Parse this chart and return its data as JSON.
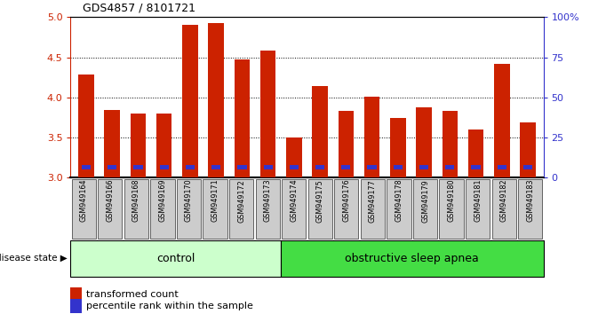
{
  "title": "GDS4857 / 8101721",
  "samples": [
    "GSM949164",
    "GSM949166",
    "GSM949168",
    "GSM949169",
    "GSM949170",
    "GSM949171",
    "GSM949172",
    "GSM949173",
    "GSM949174",
    "GSM949175",
    "GSM949176",
    "GSM949177",
    "GSM949178",
    "GSM949179",
    "GSM949180",
    "GSM949181",
    "GSM949182",
    "GSM949183"
  ],
  "transformed_count": [
    4.28,
    3.84,
    3.8,
    3.8,
    4.9,
    4.93,
    4.47,
    4.58,
    3.5,
    4.14,
    3.83,
    4.01,
    3.74,
    3.88,
    3.83,
    3.6,
    4.42,
    3.69
  ],
  "percentile_rank": [
    14,
    12,
    13,
    12,
    14,
    15,
    14,
    14,
    5,
    13,
    13,
    13,
    12,
    13,
    12,
    12,
    15,
    13
  ],
  "baseline": 3.0,
  "ylim_left": [
    3.0,
    5.0
  ],
  "ylim_right": [
    0,
    100
  ],
  "yticks_left": [
    3.0,
    3.5,
    4.0,
    4.5,
    5.0
  ],
  "yticks_right": [
    0,
    25,
    50,
    75,
    100
  ],
  "ytick_labels_right": [
    "0",
    "25",
    "50",
    "75",
    "100%"
  ],
  "control_count": 8,
  "control_label": "control",
  "disease_label": "obstructive sleep apnea",
  "legend_red": "transformed count",
  "legend_blue": "percentile rank within the sample",
  "disease_state_label": "disease state",
  "bar_color_red": "#cc2200",
  "bar_color_blue": "#3333cc",
  "control_bg": "#ccffcc",
  "disease_bg": "#44dd44",
  "tick_label_bg": "#cccccc",
  "bar_width": 0.6,
  "blue_bar_width": 0.35,
  "blue_bar_bottom": 3.1,
  "blue_bar_height": 0.055
}
